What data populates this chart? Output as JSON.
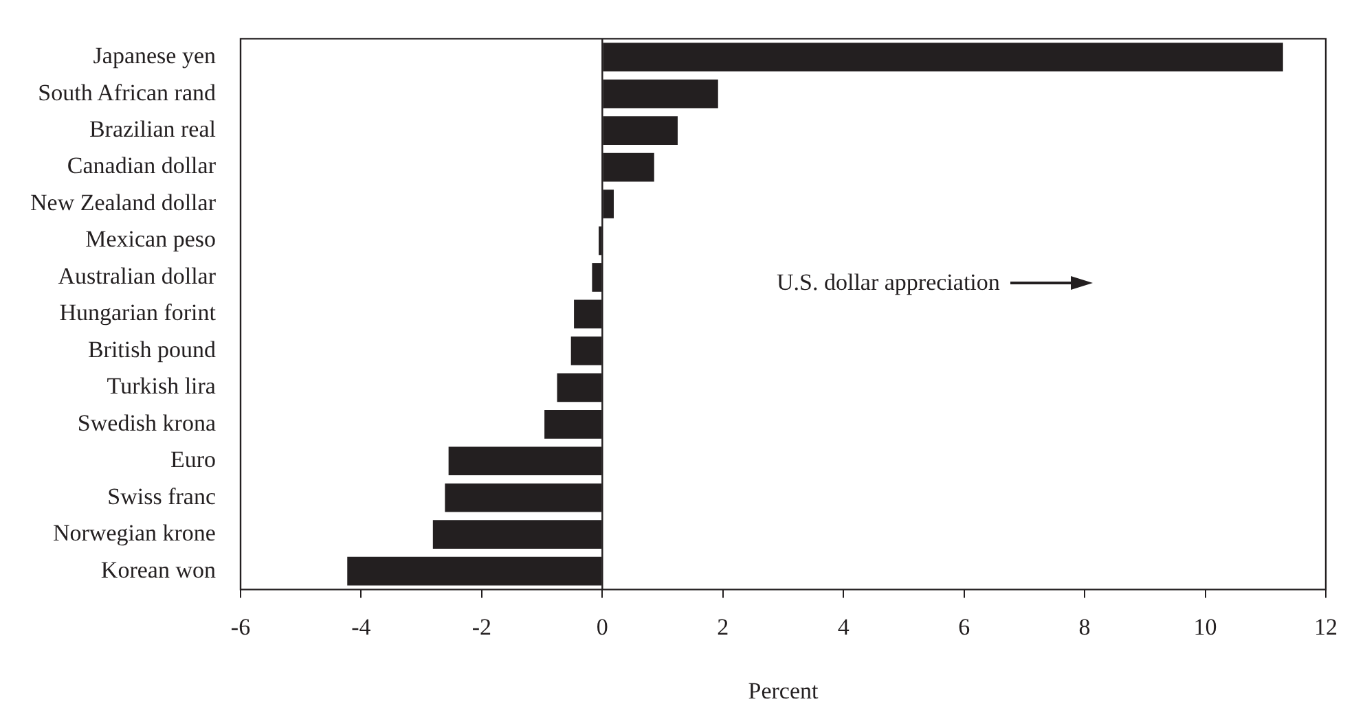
{
  "chart_data": {
    "type": "bar",
    "orientation": "horizontal",
    "xlabel": "Percent",
    "categories": [
      "Japanese yen",
      "South African rand",
      "Brazilian real",
      "Canadian dollar",
      "New Zealand dollar",
      "Mexican peso",
      "Australian dollar",
      "Hungarian forint",
      "British pound",
      "Turkish lira",
      "Swedish krona",
      "Euro",
      "Swiss franc",
      "Norwegian krone",
      "Korean won"
    ],
    "values": [
      11.29,
      1.92,
      1.25,
      0.86,
      0.19,
      -0.06,
      -0.17,
      -0.47,
      -0.52,
      -0.75,
      -0.96,
      -2.55,
      -2.61,
      -2.81,
      -4.23
    ],
    "color": "#231f20",
    "xlim": [
      -6,
      12
    ],
    "xticks": [
      -6,
      -4,
      -2,
      0,
      2,
      4,
      6,
      8,
      10,
      12
    ],
    "grid": false,
    "legend": false,
    "ref_lines": [
      {
        "axis": "x",
        "value": 0,
        "color": "#231f20"
      }
    ],
    "annotations": [
      "U.S. dollar appreciation"
    ]
  }
}
